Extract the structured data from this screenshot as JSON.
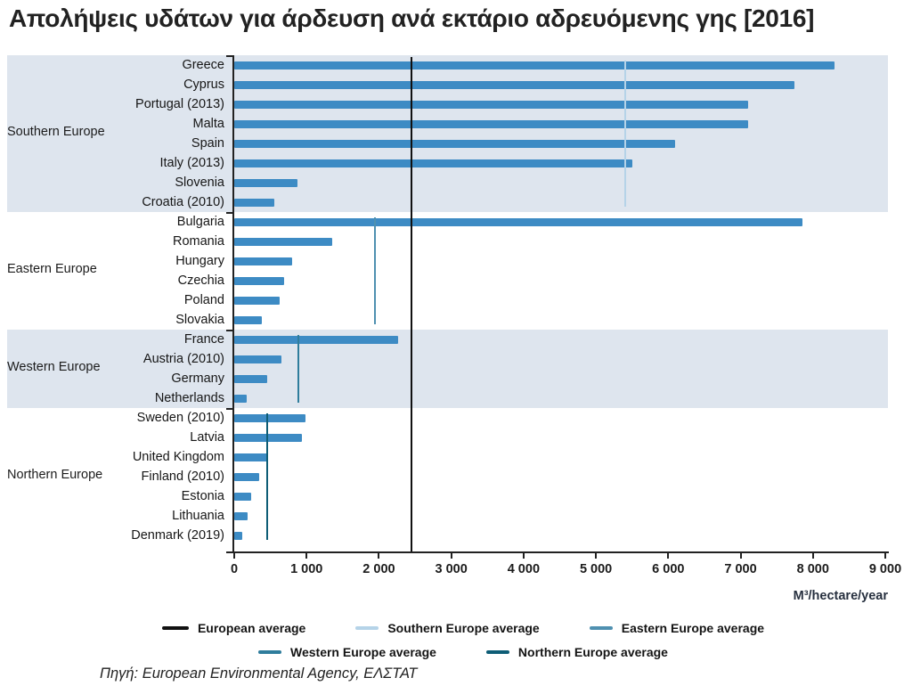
{
  "title": "Απολήψεις υδάτων για άρδευση ανά εκτάριο αδρευόμενης γης [2016]",
  "source": "Πηγή: European Environmental Agency, ΕΛΣΤΑΤ",
  "chart_data": {
    "type": "bar",
    "orientation": "horizontal",
    "title": "Απολήψεις υδάτων για άρδευση ανά εκτάριο αδρευόμενης γης [2016]",
    "xlabel": "M³/hectare/year",
    "xlim": [
      0,
      9000
    ],
    "x_ticks": [
      0,
      1000,
      2000,
      3000,
      4000,
      5000,
      6000,
      7000,
      8000,
      9000
    ],
    "x_tick_labels": [
      "0",
      "1 000",
      "2 000",
      "3 000",
      "4 000",
      "5 000",
      "6 000",
      "7 000",
      "8 000",
      "9 000"
    ],
    "grid": false,
    "bar_color": "#3d8bc4",
    "stripe_color": "#dee5ee",
    "groups": [
      {
        "name": "Southern Europe",
        "striped": true,
        "countries": [
          {
            "label": "Greece",
            "value": 8300
          },
          {
            "label": "Cyprus",
            "value": 7750
          },
          {
            "label": "Portugal (2013)",
            "value": 7100
          },
          {
            "label": "Malta",
            "value": 7100
          },
          {
            "label": "Spain",
            "value": 6100
          },
          {
            "label": "Italy (2013)",
            "value": 5500
          },
          {
            "label": "Slovenia",
            "value": 880
          },
          {
            "label": "Croatia (2010)",
            "value": 550
          }
        ]
      },
      {
        "name": "Eastern Europe",
        "striped": false,
        "countries": [
          {
            "label": "Bulgaria",
            "value": 7850
          },
          {
            "label": "Romania",
            "value": 1350
          },
          {
            "label": "Hungary",
            "value": 800
          },
          {
            "label": "Czechia",
            "value": 690
          },
          {
            "label": "Poland",
            "value": 630
          },
          {
            "label": "Slovakia",
            "value": 380
          }
        ]
      },
      {
        "name": "Western Europe",
        "striped": true,
        "countries": [
          {
            "label": "France",
            "value": 2260
          },
          {
            "label": "Austria (2010)",
            "value": 650
          },
          {
            "label": "Germany",
            "value": 450
          },
          {
            "label": "Netherlands",
            "value": 170
          }
        ]
      },
      {
        "name": "Northern Europe",
        "striped": false,
        "countries": [
          {
            "label": "Sweden (2010)",
            "value": 980
          },
          {
            "label": "Latvia",
            "value": 930
          },
          {
            "label": "United Kingdom",
            "value": 460
          },
          {
            "label": "Finland (2010)",
            "value": 350
          },
          {
            "label": "Estonia",
            "value": 240
          },
          {
            "label": "Lithuania",
            "value": 180
          },
          {
            "label": "Denmark (2019)",
            "value": 110
          }
        ]
      }
    ],
    "averages": [
      {
        "label": "European average",
        "value": 2450,
        "color": "#111111",
        "scope": "all"
      },
      {
        "label": "Southern Europe average",
        "value": 5400,
        "color": "#b5d3e8",
        "scope": "Southern Europe"
      },
      {
        "label": "Eastern Europe average",
        "value": 1950,
        "color": "#4f90b0",
        "scope": "Eastern Europe"
      },
      {
        "label": "Western Europe average",
        "value": 890,
        "color": "#2f7d9c",
        "scope": "Western Europe"
      },
      {
        "label": "Northern Europe average",
        "value": 460,
        "color": "#0e5d76",
        "scope": "Northern Europe"
      }
    ],
    "legend_rows": [
      [
        0,
        1,
        2
      ],
      [
        3,
        4
      ]
    ],
    "legend_position": "bottom"
  }
}
